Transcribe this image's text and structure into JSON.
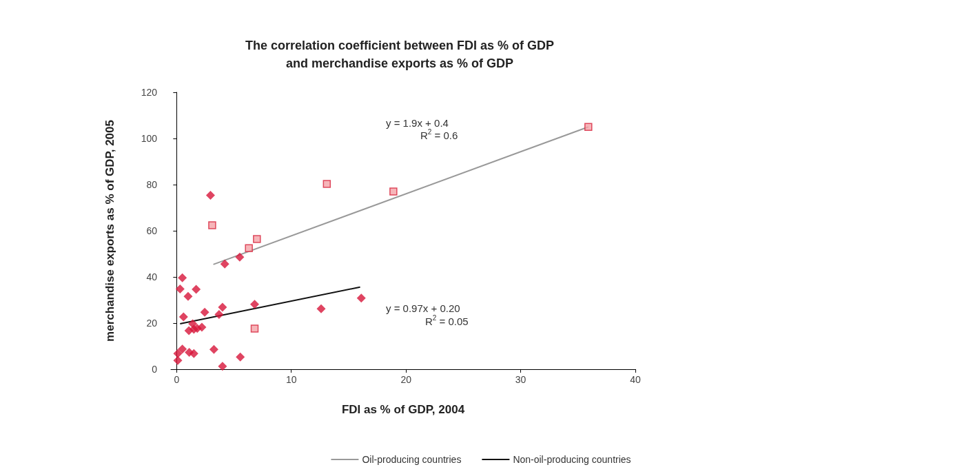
{
  "chart_data": {
    "type": "scatter",
    "title": "The correlation coefficient between FDI as % of GDP\nand merchandise exports as % of GDP",
    "xlabel": "FDI as % of GDP, 2004",
    "ylabel": "merchandise exports as % of GDP, 2005",
    "xlim": [
      -0.5,
      40
    ],
    "xticks": [
      0,
      10,
      20,
      30,
      40
    ],
    "ylim": [
      0,
      120
    ],
    "yticks": [
      0,
      20,
      40,
      60,
      80,
      100,
      120
    ],
    "grid": false,
    "legend": "bottom",
    "series": [
      {
        "marker": "square",
        "color": "#f4a3a8",
        "x": [
          3.1,
          6.3,
          7.0,
          6.8,
          13.1,
          18.9,
          35.9
        ],
        "values": [
          62.4,
          52.5,
          56.4,
          17.6,
          80.3,
          77,
          105
        ]
      },
      {
        "marker": "diamond",
        "color": "#d7153a",
        "x": [
          2.95,
          4.2,
          5.5,
          0.5,
          0.3,
          1.0,
          1.7,
          0.6,
          2.45,
          3.7,
          4.0,
          6.8,
          1.07,
          1.4,
          1.8,
          2.2,
          1.5,
          0.1,
          0.1,
          0.5,
          1.1,
          1.5,
          3.25,
          4.0,
          5.55,
          12.6,
          16.1
        ],
        "values": [
          75.4,
          45.6,
          48.6,
          39.6,
          34.8,
          31.6,
          34.6,
          22.7,
          24.7,
          23.7,
          26.9,
          28.1,
          16.7,
          19.7,
          17.7,
          18.2,
          17.3,
          3.8,
          6.8,
          8.7,
          7.3,
          6.8,
          8.6,
          1.3,
          5.3,
          26.2,
          30.8
        ]
      },
      {
        "type": "line",
        "name": "Oil-producing countries",
        "marker": "none",
        "color": "#999999",
        "x": [
          3.2,
          35.9
        ],
        "values": [
          45.4,
          105
        ]
      },
      {
        "type": "line",
        "name": "Non-oil-producing countries",
        "marker": "none",
        "color": "#111111",
        "x": [
          0.3,
          16.0
        ],
        "values": [
          19.7,
          35.6
        ]
      }
    ],
    "annotations": [
      "y = 1.9x + 0.4",
      "R$^{2}$ = 0.6",
      "y = 0.97x + 0.20",
      "R$^{2}$ = 0.05"
    ]
  }
}
